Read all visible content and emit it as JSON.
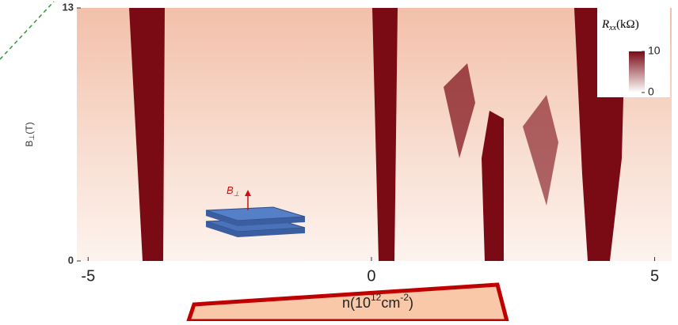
{
  "chart_data": {
    "type": "heatmap",
    "xlabel": {
      "base": "n(10",
      "sup1": "12",
      "mid": "cm",
      "sup2": "-2",
      "end": ")"
    },
    "ylabel": {
      "base": "B",
      "sub": "⊥",
      "end": "(T)"
    },
    "xlim": [
      -5.2,
      5.3
    ],
    "xticks": [
      -5,
      0,
      5
    ],
    "ylim": [
      0,
      13
    ],
    "yticks": [
      0,
      13
    ],
    "colorbar": {
      "title": "R",
      "title_sub": "xx",
      "title_end": "(kΩ)",
      "clim": [
        0,
        10
      ],
      "ticks": [
        0,
        10
      ],
      "colors": [
        "#ffffff",
        "#7a0a14"
      ]
    },
    "inset_label": {
      "base": "B",
      "sub": "⊥"
    }
  }
}
